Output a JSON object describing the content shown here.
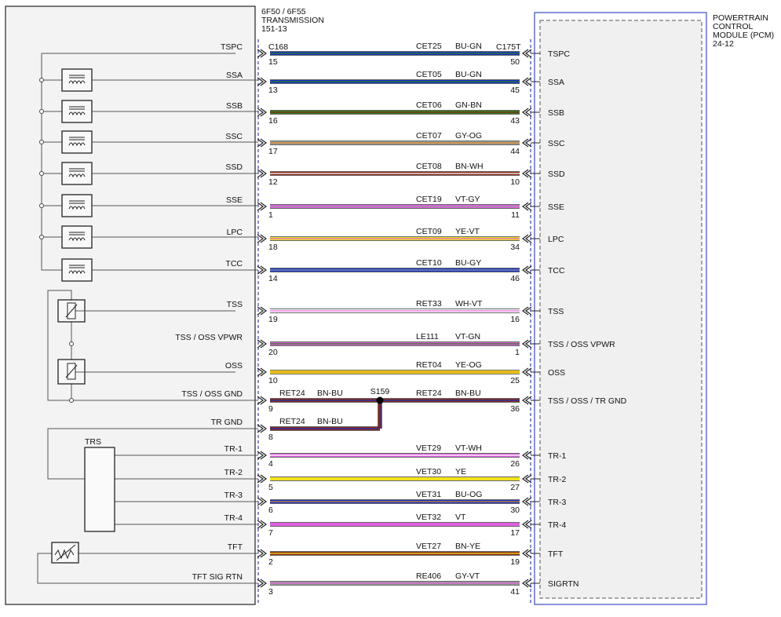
{
  "left_module": {
    "title_lines": [
      "6F50 / 6F55",
      "TRANSMISSION",
      "151-13"
    ]
  },
  "right_module": {
    "title_lines": [
      "POWERTRAIN",
      "CONTROL",
      "MODULE (PCM)",
      "24-12"
    ]
  },
  "connectors": {
    "left": "C168",
    "right": "C175T"
  },
  "splice": {
    "label": "S159"
  },
  "trs_label": "TRS",
  "colors": {
    "BU": "#1533c8",
    "GN": "#2e7d1a",
    "GY": "#9a9a9a",
    "OG": "#e08a1e",
    "BN": "#8a2a1a",
    "WH": "#ffffff",
    "VT": "#e060e0",
    "YE": "#f2e21a"
  },
  "circuits": [
    {
      "left_label": "TSPC",
      "circuit": "CET25",
      "color": "BU-GN",
      "main": "BU",
      "stripe": "GN",
      "left_pin": "15",
      "right_pin": "50",
      "right_label": "TSPC"
    },
    {
      "left_label": "SSA",
      "circuit": "CET05",
      "color": "BU-GN",
      "main": "BU",
      "stripe": "GN",
      "left_pin": "13",
      "right_pin": "45",
      "right_label": "SSA"
    },
    {
      "left_label": "SSB",
      "circuit": "CET06",
      "color": "GN-BN",
      "main": "GN",
      "stripe": "BN",
      "left_pin": "16",
      "right_pin": "43",
      "right_label": "SSB"
    },
    {
      "left_label": "SSC",
      "circuit": "CET07",
      "color": "GY-OG",
      "main": "GY",
      "stripe": "OG",
      "left_pin": "17",
      "right_pin": "44",
      "right_label": "SSC"
    },
    {
      "left_label": "SSD",
      "circuit": "CET08",
      "color": "BN-WH",
      "main": "BN",
      "stripe": "WH",
      "left_pin": "12",
      "right_pin": "10",
      "right_label": "SSD"
    },
    {
      "left_label": "SSE",
      "circuit": "CET19",
      "color": "VT-GY",
      "main": "VT",
      "stripe": "GY",
      "left_pin": "1",
      "right_pin": "11",
      "right_label": "SSE"
    },
    {
      "left_label": "LPC",
      "circuit": "CET09",
      "color": "YE-VT",
      "main": "YE",
      "stripe": "VT",
      "left_pin": "18",
      "right_pin": "34",
      "right_label": "LPC"
    },
    {
      "left_label": "TCC",
      "circuit": "CET10",
      "color": "BU-GY",
      "main": "BU",
      "stripe": "GY",
      "left_pin": "14",
      "right_pin": "46",
      "right_label": "TCC"
    },
    {
      "left_label": "TSS",
      "circuit": "RET33",
      "color": "WH-VT",
      "main": "WH",
      "stripe": "VT",
      "left_pin": "19",
      "right_pin": "16",
      "right_label": "TSS"
    },
    {
      "left_label": "TSS / OSS VPWR",
      "circuit": "LE111",
      "color": "VT-GN",
      "main": "VT",
      "stripe": "GN",
      "left_pin": "20",
      "right_pin": "1",
      "right_label": "TSS / OSS VPWR"
    },
    {
      "left_label": "OSS",
      "circuit": "RET04",
      "color": "YE-OG",
      "main": "YE",
      "stripe": "OG",
      "left_pin": "10",
      "right_pin": "25",
      "right_label": "OSS"
    },
    {
      "left_label": "TSS / OSS GND",
      "circuit": "RET24",
      "color": "BN-BU",
      "main": "BN",
      "stripe": "BU",
      "left_pin": "9",
      "right_pin": "36",
      "right_label": "TSS / OSS / TR GND",
      "left_circuit": "RET24",
      "left_color": "BN-BU"
    },
    {
      "left_label": "TR GND",
      "circuit": "RET24",
      "color": "BN-BU",
      "main": "BN",
      "stripe": "BU",
      "left_pin": "8",
      "right_pin": "",
      "right_label": ""
    },
    {
      "left_label": "TR-1",
      "circuit": "VET29",
      "color": "VT-WH",
      "main": "VT",
      "stripe": "WH",
      "left_pin": "4",
      "right_pin": "26",
      "right_label": "TR-1"
    },
    {
      "left_label": "TR-2",
      "circuit": "VET30",
      "color": "YE",
      "main": "YE",
      "stripe": "",
      "left_pin": "5",
      "right_pin": "27",
      "right_label": "TR-2"
    },
    {
      "left_label": "TR-3",
      "circuit": "VET31",
      "color": "BU-OG",
      "main": "BU",
      "stripe": "OG",
      "left_pin": "6",
      "right_pin": "30",
      "right_label": "TR-3"
    },
    {
      "left_label": "TR-4",
      "circuit": "VET32",
      "color": "VT",
      "main": "VT",
      "stripe": "",
      "left_pin": "7",
      "right_pin": "17",
      "right_label": "TR-4"
    },
    {
      "left_label": "TFT",
      "circuit": "VET27",
      "color": "BN-YE",
      "main": "BN",
      "stripe": "YE",
      "left_pin": "2",
      "right_pin": "19",
      "right_label": "TFT"
    },
    {
      "left_label": "TFT SIG RTN",
      "circuit": "RE406",
      "color": "GY-VT",
      "main": "GY",
      "stripe": "VT",
      "left_pin": "3",
      "right_pin": "41",
      "right_label": "SIGRTN"
    }
  ]
}
